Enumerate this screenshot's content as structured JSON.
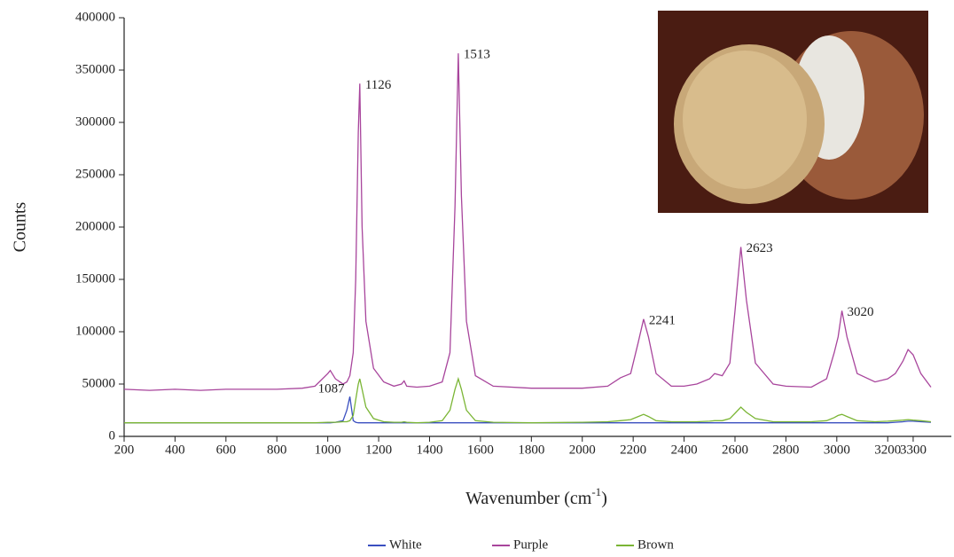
{
  "chart_data": {
    "type": "line",
    "x_label": "Wavenumber (cm",
    "x_label_sup": "-1",
    "x_label_end": ")",
    "y_label": "Counts",
    "x": [
      200,
      300,
      400,
      500,
      600,
      700,
      800,
      900,
      950,
      1000,
      1010,
      1030,
      1060,
      1075,
      1087,
      1100,
      1110,
      1120,
      1126,
      1135,
      1150,
      1180,
      1220,
      1260,
      1290,
      1300,
      1310,
      1350,
      1400,
      1450,
      1480,
      1500,
      1513,
      1525,
      1545,
      1580,
      1650,
      1800,
      2000,
      2100,
      2150,
      2190,
      2220,
      2241,
      2260,
      2290,
      2350,
      2400,
      2450,
      2500,
      2520,
      2550,
      2580,
      2600,
      2623,
      2645,
      2680,
      2750,
      2800,
      2900,
      2960,
      2990,
      3005,
      3020,
      3040,
      3080,
      3150,
      3200,
      3230,
      3260,
      3280,
      3300,
      3330,
      3370
    ],
    "series": [
      {
        "name": "White",
        "color": "#3a4fc0",
        "values": [
          13000,
          13000,
          13000,
          13000,
          13000,
          13000,
          13000,
          13000,
          13000,
          13000,
          13000,
          13500,
          15000,
          25000,
          38000,
          15000,
          13500,
          13000,
          13000,
          13000,
          13000,
          13000,
          13000,
          13000,
          13000,
          13000,
          13000,
          13000,
          13000,
          13000,
          13000,
          13000,
          13000,
          13000,
          13000,
          13000,
          13000,
          13000,
          13000,
          13000,
          13000,
          13000,
          13000,
          13000,
          13000,
          13000,
          13000,
          13000,
          13000,
          13000,
          13000,
          13000,
          13000,
          13000,
          13000,
          13000,
          13000,
          13000,
          13000,
          13000,
          13000,
          13000,
          13000,
          13000,
          13000,
          13000,
          13000,
          13000,
          13500,
          14000,
          14500,
          14500,
          14000,
          13500
        ]
      },
      {
        "name": "Purple",
        "color": "#a8459c",
        "values": [
          45000,
          44000,
          45000,
          44000,
          45000,
          45000,
          45000,
          46000,
          48000,
          60000,
          63000,
          55000,
          50000,
          52000,
          58000,
          80000,
          150000,
          290000,
          337000,
          200000,
          110000,
          65000,
          52000,
          48000,
          50000,
          53000,
          48000,
          47000,
          48000,
          52000,
          80000,
          220000,
          366000,
          230000,
          110000,
          58000,
          48000,
          46000,
          46000,
          48000,
          56000,
          60000,
          90000,
          112000,
          95000,
          60000,
          48000,
          48000,
          50000,
          55000,
          60000,
          58000,
          70000,
          120000,
          181000,
          130000,
          70000,
          50000,
          48000,
          47000,
          55000,
          80000,
          95000,
          120000,
          95000,
          60000,
          52000,
          55000,
          60000,
          72000,
          83000,
          78000,
          60000,
          47000
        ]
      },
      {
        "name": "Brown",
        "color": "#7ab534",
        "values": [
          13000,
          13000,
          13000,
          13000,
          13000,
          13000,
          13000,
          13000,
          13000,
          13500,
          13500,
          13500,
          14000,
          14000,
          15000,
          20000,
          35000,
          50000,
          55000,
          45000,
          28000,
          17000,
          14000,
          13500,
          13500,
          14000,
          13500,
          13000,
          13500,
          15000,
          25000,
          45000,
          55000,
          45000,
          25000,
          15000,
          13500,
          13000,
          13500,
          14000,
          15000,
          16000,
          19000,
          21000,
          19000,
          15000,
          14000,
          14000,
          14000,
          14500,
          15000,
          15000,
          17000,
          22000,
          28000,
          23000,
          17000,
          14000,
          14000,
          14000,
          15000,
          18000,
          20000,
          21000,
          19000,
          15000,
          14000,
          14500,
          15000,
          15500,
          16000,
          15500,
          15000,
          14000
        ]
      }
    ],
    "annotations": [
      {
        "label": "1126",
        "x": 1126,
        "y": 337000
      },
      {
        "label": "1513",
        "x": 1513,
        "y": 366000
      },
      {
        "label": "2241",
        "x": 2241,
        "y": 112000
      },
      {
        "label": "2623",
        "x": 2623,
        "y": 181000
      },
      {
        "label": "3020",
        "x": 3020,
        "y": 120000
      },
      {
        "label": "1087",
        "x": 1087,
        "y": 38000
      }
    ],
    "xlim": [
      200,
      3450
    ],
    "ylim": [
      0,
      400000
    ],
    "xticks": [
      200,
      400,
      600,
      800,
      1000,
      1200,
      1400,
      1600,
      1800,
      2000,
      2200,
      2400,
      2600,
      2800,
      3000,
      3200,
      3300
    ],
    "yticks": [
      0,
      50000,
      100000,
      150000,
      200000,
      250000,
      300000,
      350000,
      400000
    ]
  }
}
